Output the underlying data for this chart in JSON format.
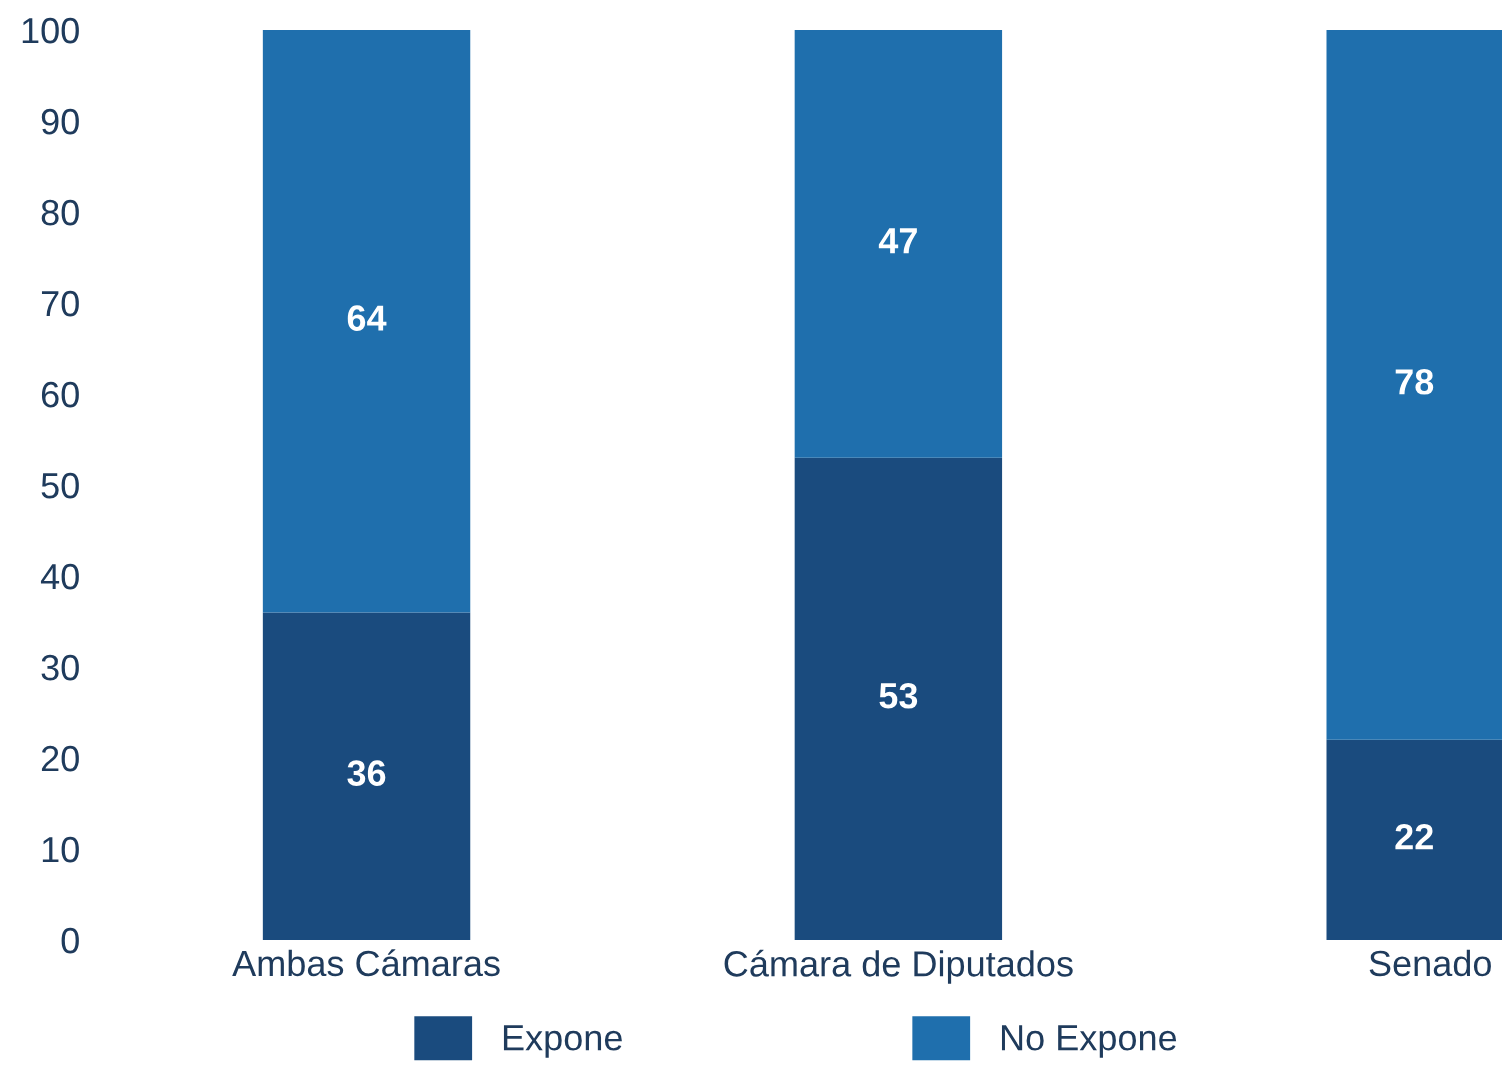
{
  "chart_data": {
    "type": "bar",
    "stacked": true,
    "categories": [
      "Ambas Cámaras",
      "Cámara de Diputados",
      "Senado"
    ],
    "series": [
      {
        "name": "Expone",
        "color": "#1a4b7e",
        "values": [
          36,
          53,
          22
        ]
      },
      {
        "name": "No Expone",
        "color": "#1f6fad",
        "values": [
          64,
          47,
          78
        ]
      }
    ],
    "ylim": [
      0,
      100
    ],
    "yticks": [
      0,
      10,
      20,
      30,
      40,
      50,
      60,
      70,
      80,
      90,
      100
    ],
    "data_labels": true,
    "legend": "bottom",
    "grid": false
  }
}
